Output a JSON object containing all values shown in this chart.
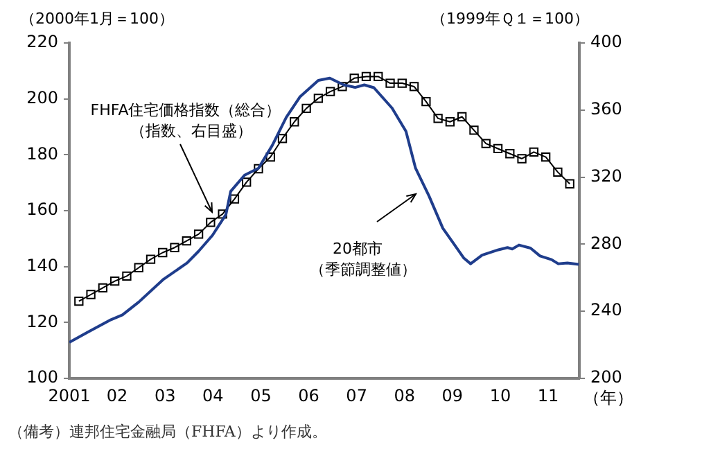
{
  "chart_data": {
    "type": "line",
    "ylabel": "（2000年1月＝100）",
    "y2label": "（1999年Ｑ１＝100）",
    "xlabel": "（年）",
    "xlim": [
      2001,
      2011.65
    ],
    "xticks": [
      {
        "value": 2001,
        "label": "2001"
      },
      {
        "value": 2002,
        "label": "02"
      },
      {
        "value": 2003,
        "label": "03"
      },
      {
        "value": 2004,
        "label": "04"
      },
      {
        "value": 2005,
        "label": "05"
      },
      {
        "value": 2006,
        "label": "06"
      },
      {
        "value": 2007,
        "label": "07"
      },
      {
        "value": 2008,
        "label": "08"
      },
      {
        "value": 2009,
        "label": "09"
      },
      {
        "value": 2010,
        "label": "10"
      },
      {
        "value": 2011,
        "label": "11"
      }
    ],
    "ylim": [
      100,
      220
    ],
    "yticks": [
      100,
      120,
      140,
      160,
      180,
      200,
      220
    ],
    "y2lim": [
      200,
      400
    ],
    "y2ticks": [
      200,
      240,
      280,
      320,
      360,
      400
    ],
    "grid": false,
    "legend": false,
    "series": [
      {
        "color": "#1f3d8c",
        "marker": "none",
        "x": [
          2001,
          2001.38,
          2001.87,
          2002.11,
          2002.45,
          2002.97,
          2003.46,
          2003.7,
          2003.99,
          2004.27,
          2004.37,
          2004.66,
          2004.95,
          2005.24,
          2005.53,
          2005.82,
          2006.2,
          2006.44,
          2006.73,
          2006.97,
          2007.16,
          2007.36,
          2007.74,
          2008.03,
          2008.23,
          2008.51,
          2008.8,
          2009.04,
          2009.24,
          2009.38,
          2009.62,
          2009.96,
          2010.15,
          2010.25,
          2010.39,
          2010.63,
          2010.83,
          2011.07,
          2011.21,
          2011.4,
          2011.64
        ],
        "values": [
          112.9,
          116.5,
          121,
          122.7,
          127.3,
          135.5,
          141.3,
          145.5,
          151.2,
          158.6,
          166.9,
          172.7,
          175.2,
          183.4,
          193.4,
          200.8,
          206.6,
          207.4,
          205,
          204.1,
          205,
          204,
          196.7,
          188.4,
          175.2,
          165.3,
          153.7,
          147.9,
          143,
          141,
          144.1,
          146,
          146.8,
          146.3,
          147.7,
          146.6,
          143.8,
          142.5,
          141,
          141.3,
          140.8
        ]
      },
      {
        "color": "#000000",
        "marker": "square",
        "axis": "y2",
        "x": [
          2001.2,
          2001.45,
          2001.7,
          2001.95,
          2002.2,
          2002.45,
          2002.7,
          2002.95,
          2003.2,
          2003.45,
          2003.7,
          2003.95,
          2004.2,
          2004.45,
          2004.7,
          2004.95,
          2005.2,
          2005.45,
          2005.7,
          2005.95,
          2006.2,
          2006.45,
          2006.7,
          2006.95,
          2007.2,
          2007.45,
          2007.7,
          2007.95,
          2008.2,
          2008.45,
          2008.7,
          2008.95,
          2009.2,
          2009.45,
          2009.7,
          2009.95,
          2010.2,
          2010.45,
          2010.7,
          2010.95,
          2011.2,
          2011.45
        ],
        "values": [
          246,
          250,
          254,
          258,
          261,
          266,
          271,
          275,
          278,
          282,
          286,
          293,
          298,
          307,
          317,
          325,
          332,
          343,
          353,
          361,
          367,
          371,
          374,
          379,
          380,
          380,
          376,
          376,
          374,
          365,
          355,
          353,
          356,
          348,
          340,
          337,
          334,
          331,
          335,
          332,
          323,
          316
        ]
      }
    ],
    "annotations": [
      "FHFA住宅価格指数（総合）（指数、右目盛）",
      "20都市（季節調整値）",
      "（備考）連邦住宅金融局（FHFA）より作成。"
    ]
  }
}
